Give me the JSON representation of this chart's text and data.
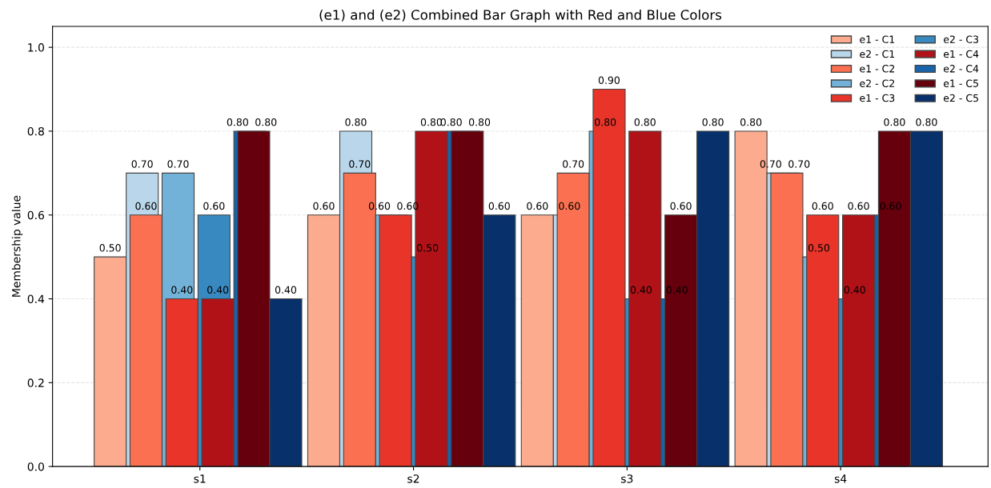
{
  "chart_data": {
    "type": "bar",
    "title": "(e1) and (e2) Combined Bar Graph with Red and Blue Colors",
    "ylabel": "Membership value",
    "categories": [
      "s1",
      "s2",
      "s3",
      "s4"
    ],
    "series": [
      {
        "name": "e1 - C1",
        "color": "#fcab8f",
        "values": [
          0.5,
          0.6,
          0.6,
          0.8
        ],
        "value_labels": [
          "0.50",
          "0.60",
          "0.60",
          "0.80"
        ]
      },
      {
        "name": "e2 - C1",
        "color": "#b9d6ea",
        "values": [
          0.7,
          0.8,
          0.6,
          0.7
        ],
        "value_labels": [
          "0.70",
          "0.80",
          "0.60",
          "0.70"
        ]
      },
      {
        "name": "e1 - C2",
        "color": "#fb7050",
        "values": [
          0.6,
          0.7,
          0.7,
          0.7
        ],
        "value_labels": [
          "0.60",
          "0.70",
          "0.70",
          "0.70"
        ]
      },
      {
        "name": "e2 - C2",
        "color": "#73b2d8",
        "values": [
          0.7,
          0.6,
          0.8,
          0.5
        ],
        "value_labels": [
          "0.70",
          "0.60",
          "0.80",
          "0.50"
        ]
      },
      {
        "name": "e1 - C3",
        "color": "#e83429",
        "values": [
          0.4,
          0.6,
          0.9,
          0.6
        ],
        "value_labels": [
          "0.40",
          "0.60",
          "0.90",
          "0.60"
        ]
      },
      {
        "name": "e2 - C3",
        "color": "#3989c1",
        "values": [
          0.6,
          0.5,
          0.4,
          0.4
        ],
        "value_labels": [
          "0.60",
          "0.50",
          "0.40",
          "0.40"
        ]
      },
      {
        "name": "e1 - C4",
        "color": "#b11218",
        "values": [
          0.4,
          0.8,
          0.8,
          0.6
        ],
        "value_labels": [
          "0.40",
          "0.80",
          "0.80",
          "0.60"
        ]
      },
      {
        "name": "e2 - C4",
        "color": "#1764ab",
        "values": [
          0.8,
          0.8,
          0.4,
          0.6
        ],
        "value_labels": [
          "0.80",
          "0.80",
          "0.40",
          "0.60"
        ]
      },
      {
        "name": "e1 - C5",
        "color": "#67000d",
        "values": [
          0.8,
          0.8,
          0.6,
          0.8
        ],
        "value_labels": [
          "0.80",
          "0.80",
          "0.60",
          "0.80"
        ]
      },
      {
        "name": "e2 - C5",
        "color": "#08306b",
        "values": [
          0.4,
          0.6,
          0.8,
          0.8
        ],
        "value_labels": [
          "0.40",
          "0.60",
          "0.80",
          "0.80"
        ]
      }
    ],
    "ylim": [
      0,
      1.05
    ],
    "yticks": [
      {
        "value": 0,
        "label": "0.0"
      },
      {
        "value": 0.2,
        "label": "0.2"
      },
      {
        "value": 0.4,
        "label": "0.4"
      },
      {
        "value": 0.6,
        "label": "0.6"
      },
      {
        "value": 0.8,
        "label": "0.8"
      },
      {
        "value": 1.0,
        "label": "1.0"
      }
    ],
    "grid": "y",
    "legend": "top right"
  }
}
